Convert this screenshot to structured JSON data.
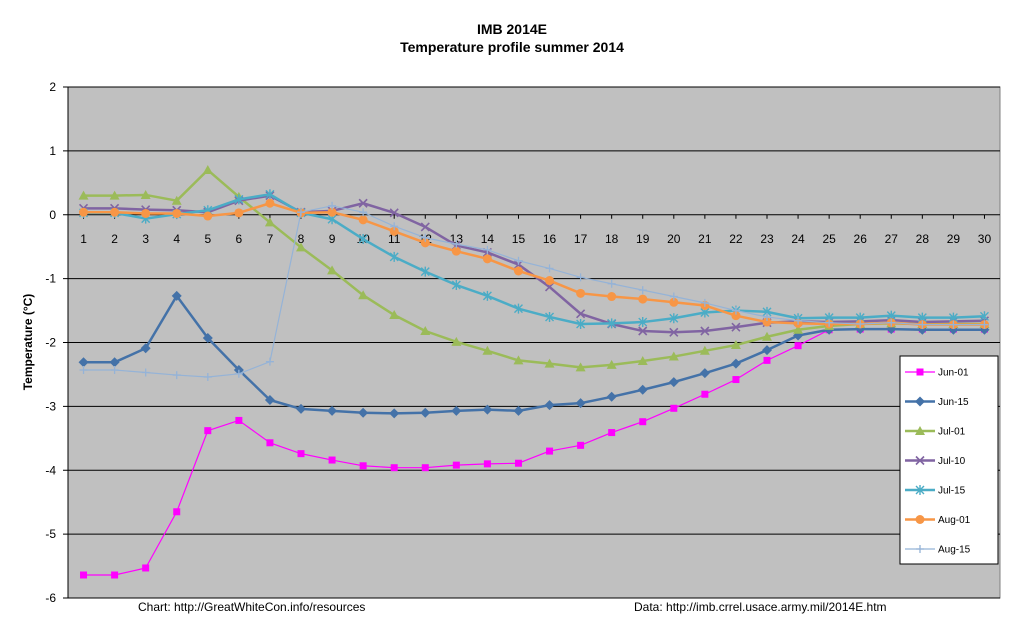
{
  "chart_data": {
    "type": "line",
    "title": "IMB 2014E",
    "subtitle": "Temperature profile summer 2014",
    "ylabel": "Temperature (°C)",
    "xlabel": "",
    "x": [
      1,
      2,
      3,
      4,
      5,
      6,
      7,
      8,
      9,
      10,
      11,
      12,
      13,
      14,
      15,
      16,
      17,
      18,
      19,
      20,
      21,
      22,
      23,
      24,
      25,
      26,
      27,
      28,
      29,
      30
    ],
    "xlim": [
      0.5,
      30.5
    ],
    "ylim": [
      -6,
      2
    ],
    "yticks": [
      2,
      1,
      0,
      -1,
      -2,
      -3,
      -4,
      -5,
      -6
    ],
    "grid": "horizontal",
    "legend_position": "right",
    "plot_background": "#c0c0c0",
    "series": [
      {
        "name": "Jun-01",
        "color": "#ff00ff",
        "marker": "square",
        "values": [
          -5.64,
          -5.64,
          -5.53,
          -4.65,
          -3.38,
          -3.22,
          -3.57,
          -3.74,
          -3.84,
          -3.93,
          -3.96,
          -3.96,
          -3.92,
          -3.9,
          -3.89,
          -3.7,
          -3.61,
          -3.41,
          -3.24,
          -3.03,
          -2.81,
          -2.58,
          -2.28,
          -2.05,
          -1.8,
          -1.79,
          -1.79,
          -1.79,
          -1.79,
          -1.79
        ]
      },
      {
        "name": "Jun-15",
        "color": "#4472a8",
        "marker": "diamond",
        "values": [
          -2.31,
          -2.31,
          -2.09,
          -1.27,
          -1.93,
          -2.43,
          -2.9,
          -3.04,
          -3.07,
          -3.1,
          -3.11,
          -3.1,
          -3.07,
          -3.05,
          -3.07,
          -2.98,
          -2.95,
          -2.85,
          -2.74,
          -2.62,
          -2.48,
          -2.33,
          -2.12,
          -1.89,
          -1.8,
          -1.79,
          -1.79,
          -1.8,
          -1.8,
          -1.8
        ]
      },
      {
        "name": "Jul-01",
        "color": "#9bbb59",
        "marker": "triangle",
        "values": [
          0.3,
          0.3,
          0.31,
          0.22,
          0.7,
          0.28,
          -0.12,
          -0.51,
          -0.87,
          -1.26,
          -1.57,
          -1.82,
          -1.99,
          -2.13,
          -2.28,
          -2.33,
          -2.39,
          -2.35,
          -2.29,
          -2.22,
          -2.13,
          -2.04,
          -1.91,
          -1.8,
          -1.74,
          -1.71,
          -1.7,
          -1.71,
          -1.71,
          -1.71
        ]
      },
      {
        "name": "Jul-10",
        "color": "#8064a2",
        "marker": "x",
        "values": [
          0.1,
          0.1,
          0.08,
          0.07,
          0.04,
          0.22,
          0.3,
          0.04,
          0.06,
          0.18,
          0.03,
          -0.19,
          -0.48,
          -0.59,
          -0.78,
          -1.13,
          -1.55,
          -1.71,
          -1.82,
          -1.84,
          -1.82,
          -1.76,
          -1.69,
          -1.67,
          -1.68,
          -1.67,
          -1.65,
          -1.68,
          -1.67,
          -1.66
        ]
      },
      {
        "name": "Jul-15",
        "color": "#4bacc6",
        "marker": "star",
        "values": [
          0.03,
          0.03,
          -0.06,
          0.01,
          0.07,
          0.24,
          0.32,
          0.03,
          -0.07,
          -0.38,
          -0.66,
          -0.89,
          -1.1,
          -1.27,
          -1.47,
          -1.6,
          -1.71,
          -1.7,
          -1.68,
          -1.62,
          -1.53,
          -1.5,
          -1.52,
          -1.62,
          -1.61,
          -1.61,
          -1.58,
          -1.61,
          -1.61,
          -1.59
        ]
      },
      {
        "name": "Aug-01",
        "color": "#f79646",
        "marker": "circle",
        "values": [
          0.04,
          0.04,
          0.02,
          0.02,
          -0.02,
          0.03,
          0.18,
          0.03,
          0.04,
          -0.08,
          -0.26,
          -0.44,
          -0.57,
          -0.69,
          -0.88,
          -1.03,
          -1.23,
          -1.28,
          -1.32,
          -1.37,
          -1.42,
          -1.58,
          -1.68,
          -1.7,
          -1.71,
          -1.71,
          -1.69,
          -1.72,
          -1.72,
          -1.72
        ]
      },
      {
        "name": "Aug-15",
        "color": "#95b3d7",
        "marker": "plus",
        "values": [
          -2.43,
          -2.43,
          -2.47,
          -2.51,
          -2.54,
          -2.49,
          -2.3,
          0.04,
          0.14,
          0.04,
          -0.18,
          -0.36,
          -0.46,
          -0.55,
          -0.72,
          -0.84,
          -0.98,
          -1.08,
          -1.18,
          -1.28,
          -1.38,
          -1.5,
          -1.6,
          -1.66,
          -1.69,
          -1.71,
          -1.69,
          -1.72,
          -1.72,
          -1.72
        ]
      }
    ]
  },
  "credits": {
    "left": "Chart: http://GreatWhiteCon.info/resources",
    "right": "Data:  http://imb.crrel.usace.army.mil/2014E.htm"
  }
}
